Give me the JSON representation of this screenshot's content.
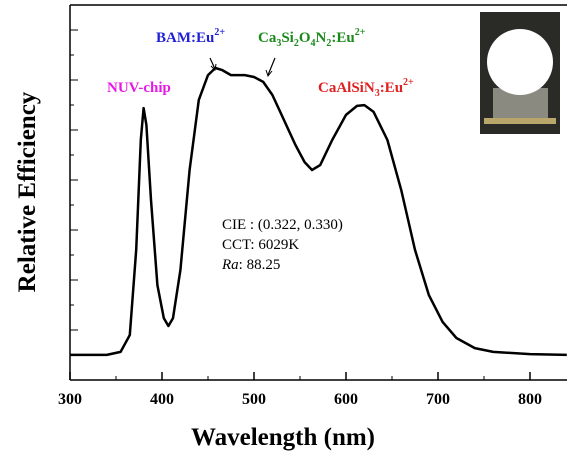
{
  "chart_data": {
    "type": "line",
    "x_label": "Wavelength (nm)",
    "y_label": "Relative Efficiency",
    "xlim": [
      300,
      840
    ],
    "ylim": [
      0,
      1
    ],
    "xticks": [
      300,
      400,
      500,
      600,
      700,
      800
    ],
    "x": [
      300,
      340,
      355,
      365,
      372,
      377,
      380,
      383,
      388,
      395,
      402,
      407,
      412,
      420,
      430,
      440,
      450,
      458,
      465,
      475,
      490,
      500,
      510,
      520,
      530,
      545,
      555,
      563,
      572,
      585,
      600,
      612,
      620,
      630,
      645,
      660,
      675,
      690,
      705,
      720,
      740,
      760,
      800,
      840
    ],
    "series": [
      {
        "color": "#000000",
        "values": [
          0.067,
          0.067,
          0.075,
          0.12,
          0.347,
          0.64,
          0.725,
          0.68,
          0.48,
          0.253,
          0.165,
          0.144,
          0.165,
          0.293,
          0.56,
          0.747,
          0.813,
          0.832,
          0.827,
          0.813,
          0.813,
          0.808,
          0.795,
          0.76,
          0.707,
          0.627,
          0.581,
          0.56,
          0.573,
          0.64,
          0.707,
          0.731,
          0.733,
          0.715,
          0.64,
          0.507,
          0.347,
          0.227,
          0.155,
          0.112,
          0.085,
          0.075,
          0.069,
          0.067
        ]
      }
    ],
    "annotations": [
      {
        "text": "NUV-chip",
        "color": "#e619e6"
      },
      {
        "text": "BAM:Eu2+",
        "color": "#1f1fd6"
      },
      {
        "text": "Ca3Si2O4N2:Eu2+",
        "color": "#1a8a1a"
      },
      {
        "text": "CaAlSiN3:Eu2+",
        "color": "#e01f1f"
      }
    ],
    "info": [
      "CIE : (0.322, 0.330)",
      "CCT: 6029K",
      "Ra: 88.25"
    ]
  }
}
